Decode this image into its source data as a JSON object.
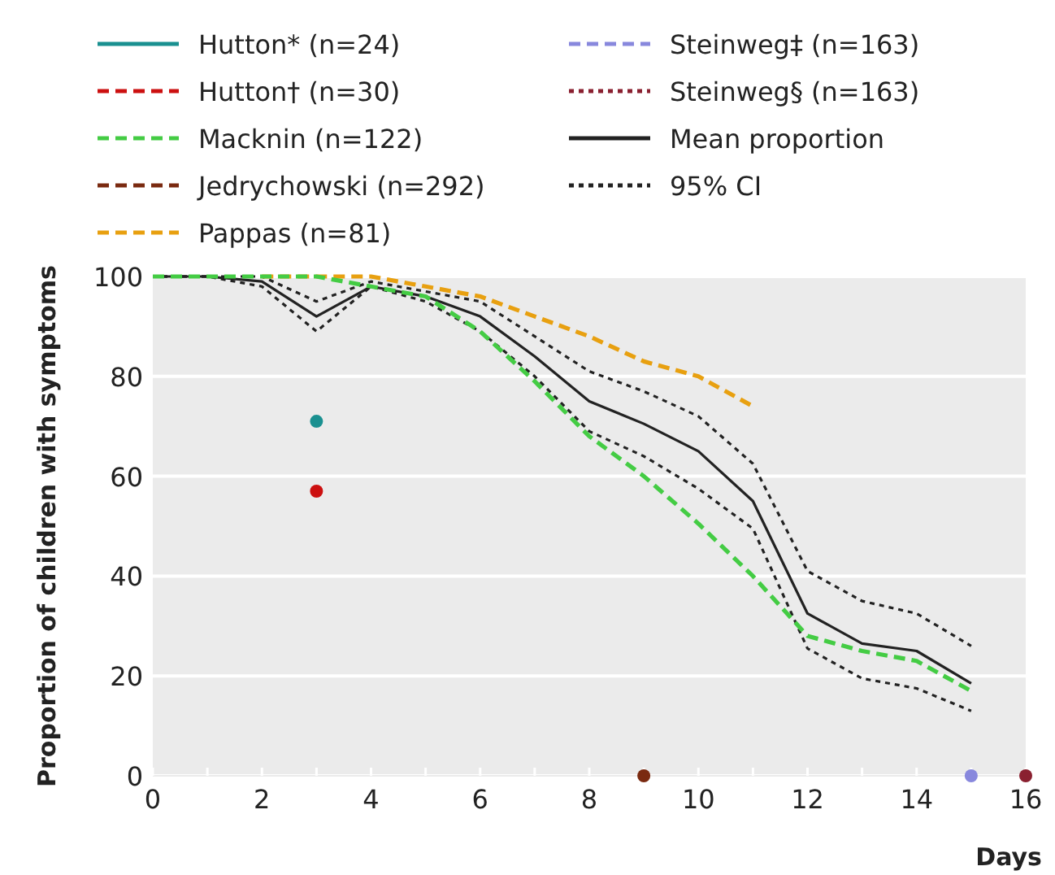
{
  "chart_data": {
    "type": "line",
    "xlabel": "Days",
    "ylabel": "Proportion of children with symptoms",
    "xlim": [
      0,
      16
    ],
    "ylim": [
      0,
      100
    ],
    "xticks": [
      0,
      {
        "value": 1,
        "label": null
      },
      2,
      {
        "value": 3,
        "label": null
      },
      4,
      {
        "value": 5,
        "label": null
      },
      6,
      {
        "value": 7,
        "label": null
      },
      8,
      {
        "value": 9,
        "label": null
      },
      10,
      {
        "value": 11,
        "label": null
      },
      12,
      {
        "value": 13,
        "label": null
      },
      14,
      {
        "value": 15,
        "label": null
      },
      16
    ],
    "yticks": [
      0,
      20,
      40,
      60,
      80,
      100
    ],
    "grid": "y",
    "legend": "top",
    "marker": "none",
    "series": [
      {
        "name": "Hutton* (n=24)",
        "color": "#1a9090",
        "line_style": "solid",
        "marker": "circle",
        "x": [
          3
        ],
        "values": [
          71
        ]
      },
      {
        "name": "Hutton† (n=30)",
        "color": "#cc1010",
        "line_style": "dashed",
        "marker": "circle",
        "x": [
          3
        ],
        "values": [
          57
        ]
      },
      {
        "name": "Macknin (n=122)",
        "color": "#44cc44",
        "line_style": "dashed",
        "x": [
          0,
          1,
          2,
          3,
          4,
          5,
          6,
          7,
          8,
          9,
          10,
          11,
          12,
          13,
          14,
          15
        ],
        "values": [
          100,
          100,
          100,
          100,
          98,
          96,
          89,
          79,
          68,
          60,
          50.5,
          40,
          28,
          25,
          23,
          17
        ]
      },
      {
        "name": "Jedrychowski (n=292)",
        "color": "#7a2a10",
        "line_style": "dashed",
        "marker": "circle",
        "x": [
          9
        ],
        "values": [
          0
        ]
      },
      {
        "name": "Pappas (n=81)",
        "color": "#e8a010",
        "line_style": "dashed",
        "x": [
          2,
          3,
          4,
          5,
          6,
          7,
          8,
          9,
          10,
          11
        ],
        "values": [
          100,
          100,
          100,
          98,
          96,
          92,
          88,
          83,
          80,
          74
        ]
      },
      {
        "name": "Steinweg‡ (n=163)",
        "color": "#8888dd",
        "line_style": "dashed",
        "marker": "circle",
        "x": [
          15
        ],
        "values": [
          0
        ]
      },
      {
        "name": "Steinweg§ (n=163)",
        "color": "#8a2030",
        "line_style": "dotted",
        "marker": "circle",
        "x": [
          16
        ],
        "values": [
          0
        ]
      },
      {
        "name": "Mean proportion",
        "color": "#222222",
        "line_style": "solid",
        "x": [
          0,
          1,
          2,
          3,
          4,
          5,
          6,
          7,
          8,
          9,
          10,
          11,
          12,
          13,
          14,
          15
        ],
        "values": [
          100,
          100,
          99,
          92,
          98,
          96,
          92,
          84,
          75,
          70.5,
          65,
          55,
          32.5,
          26.5,
          25,
          18.5
        ]
      },
      {
        "name": "95% CI",
        "color": "#222222",
        "line_style": "dotted",
        "x": [
          0,
          1,
          2,
          3,
          4,
          5,
          6,
          7,
          8,
          9,
          10,
          11,
          12,
          13,
          14,
          15
        ],
        "values": [
          100,
          100,
          100,
          95,
          99,
          97,
          95,
          88,
          81,
          77,
          72,
          62.5,
          41,
          35,
          32.5,
          26
        ]
      },
      {
        "color": "#222222",
        "line_style": "dotted",
        "x": [
          0,
          1,
          2,
          3,
          4,
          5,
          6,
          7,
          8,
          9,
          10,
          11,
          12,
          13,
          14,
          15
        ],
        "values": [
          100,
          100,
          98,
          89,
          98,
          95,
          89,
          80,
          69,
          64,
          57.5,
          49.5,
          25.5,
          19.5,
          17.5,
          13
        ]
      }
    ]
  }
}
